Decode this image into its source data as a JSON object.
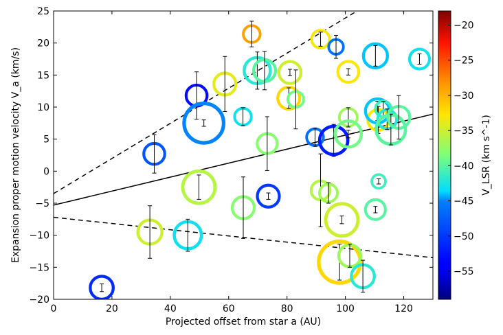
{
  "chart_data": {
    "type": "scatter",
    "xlabel": "Projected offset from star a (AU)",
    "ylabel": "Expansion proper motion velocity V_a (km/s)",
    "colorbar_label": "V_LSR (km s^-1)",
    "xlim": [
      0,
      130
    ],
    "ylim": [
      -20,
      25
    ],
    "clim": [
      -59,
      -18
    ],
    "x_ticks": [
      "0",
      "20",
      "40",
      "60",
      "80",
      "100",
      "120"
    ],
    "y_ticks": [
      "−20",
      "−15",
      "−10",
      "−5",
      "0",
      "5",
      "10",
      "15",
      "20",
      "25"
    ],
    "c_ticks": [
      "−20",
      "−25",
      "−30",
      "−35",
      "−40",
      "−45",
      "−50",
      "−55"
    ],
    "lines": [
      {
        "name": "fit",
        "style": "solid",
        "points": [
          [
            0,
            -5.3
          ],
          [
            130,
            8.9
          ]
        ]
      },
      {
        "name": "upper envelope",
        "style": "dashed",
        "points": [
          [
            0,
            -3.5
          ],
          [
            104,
            25
          ]
        ]
      },
      {
        "name": "lower envelope",
        "style": "dashed",
        "points": [
          [
            0,
            -7.2
          ],
          [
            130,
            -13.5
          ]
        ]
      }
    ],
    "points": [
      {
        "x": 16.5,
        "y": -18.2,
        "err": 0.6,
        "size": 1.3,
        "vlsr": -51
      },
      {
        "x": 33,
        "y": -9.5,
        "err": 4.1,
        "size": 1.4,
        "vlsr": -35
      },
      {
        "x": 34.5,
        "y": 2.7,
        "err": 3.0,
        "size": 1.1,
        "vlsr": -48
      },
      {
        "x": 46,
        "y": -10.0,
        "err": 2.5,
        "size": 1.7,
        "vlsr": -43
      },
      {
        "x": 49,
        "y": 11.8,
        "err": 3.7,
        "size": 1.1,
        "vlsr": -53
      },
      {
        "x": 51.5,
        "y": 7.5,
        "err": 0.5,
        "size": 2.9,
        "vlsr": -45
      },
      {
        "x": 49.8,
        "y": -2.5,
        "err": 1.9,
        "size": 2.2,
        "vlsr": -36
      },
      {
        "x": 58.7,
        "y": 13.6,
        "err": 4.3,
        "size": 1.2,
        "vlsr": -34
      },
      {
        "x": 64.9,
        "y": 8.5,
        "err": 1.4,
        "size": 0.7,
        "vlsr": -43
      },
      {
        "x": 65,
        "y": -5.7,
        "err": 4.8,
        "size": 1.2,
        "vlsr": -38
      },
      {
        "x": 67.9,
        "y": 21.4,
        "err": 2.0,
        "size": 0.7,
        "vlsr": -29
      },
      {
        "x": 69.8,
        "y": 15.7,
        "err": 2.9,
        "size": 1.6,
        "vlsr": -42
      },
      {
        "x": 72.3,
        "y": 15.7,
        "err": 3.0,
        "size": 1.2,
        "vlsr": -40
      },
      {
        "x": 73.2,
        "y": 4.3,
        "err": 4.2,
        "size": 1.0,
        "vlsr": -38
      },
      {
        "x": 73.6,
        "y": -3.9,
        "err": 0.5,
        "size": 1.2,
        "vlsr": -50
      },
      {
        "x": 81,
        "y": 15.4,
        "err": 0.5,
        "size": 1.2,
        "vlsr": -35
      },
      {
        "x": 80.6,
        "y": 11.4,
        "err": 1.6,
        "size": 1.2,
        "vlsr": -32
      },
      {
        "x": 83,
        "y": 11.2,
        "err": 4.6,
        "size": 0.6,
        "vlsr": -39
      },
      {
        "x": 91.5,
        "y": 20.6,
        "err": 1.1,
        "size": 0.8,
        "vlsr": -33
      },
      {
        "x": 89.6,
        "y": 5.3,
        "err": 1.4,
        "size": 0.7,
        "vlsr": -46
      },
      {
        "x": 91.5,
        "y": -3.0,
        "err": 5.7,
        "size": 0.9,
        "vlsr": -36
      },
      {
        "x": 94.2,
        "y": -3.4,
        "err": 1.6,
        "size": 0.8,
        "vlsr": -37
      },
      {
        "x": 96.8,
        "y": 19.4,
        "err": 1.8,
        "size": 0.5,
        "vlsr": -46
      },
      {
        "x": 96,
        "y": 4.8,
        "err": 2.5,
        "size": 1.8,
        "vlsr": -52
      },
      {
        "x": 98.8,
        "y": -7.6,
        "err": 0.6,
        "size": 2.2,
        "vlsr": -35
      },
      {
        "x": 98,
        "y": -14.2,
        "err": 2.8,
        "size": 3.1,
        "vlsr": -32
      },
      {
        "x": 101,
        "y": 8.4,
        "err": 1.5,
        "size": 0.8,
        "vlsr": -37
      },
      {
        "x": 101,
        "y": 15.5,
        "err": 0.5,
        "size": 1.1,
        "vlsr": -33
      },
      {
        "x": 101,
        "y": 5.8,
        "err": 0.6,
        "size": 1.6,
        "vlsr": -39
      },
      {
        "x": 101.5,
        "y": -13.2,
        "err": 1.8,
        "size": 1.2,
        "vlsr": -37
      },
      {
        "x": 106,
        "y": -16.4,
        "err": 2.5,
        "size": 1.3,
        "vlsr": -42
      },
      {
        "x": 110.3,
        "y": 18.0,
        "err": 1.6,
        "size": 1.4,
        "vlsr": -44
      },
      {
        "x": 110.3,
        "y": -6.0,
        "err": 0.5,
        "size": 1.0,
        "vlsr": -40
      },
      {
        "x": 111.3,
        "y": 8.0,
        "err": 2.1,
        "size": 1.1,
        "vlsr": -33
      },
      {
        "x": 111,
        "y": 9.4,
        "err": 1.5,
        "size": 1.4,
        "vlsr": -44
      },
      {
        "x": 111.4,
        "y": -1.6,
        "err": 0.4,
        "size": 0.4,
        "vlsr": -41
      },
      {
        "x": 113,
        "y": 9.7,
        "err": 1.2,
        "size": 0.6,
        "vlsr": -41
      },
      {
        "x": 114.3,
        "y": 8.1,
        "err": 1.6,
        "size": 0.9,
        "vlsr": -42
      },
      {
        "x": 115.6,
        "y": 6.5,
        "err": 2.4,
        "size": 1.9,
        "vlsr": -40
      },
      {
        "x": 118.3,
        "y": 8.4,
        "err": 3.4,
        "size": 1.2,
        "vlsr": -40
      },
      {
        "x": 125.4,
        "y": 17.5,
        "err": 0.8,
        "size": 1.0,
        "vlsr": -43
      }
    ]
  }
}
